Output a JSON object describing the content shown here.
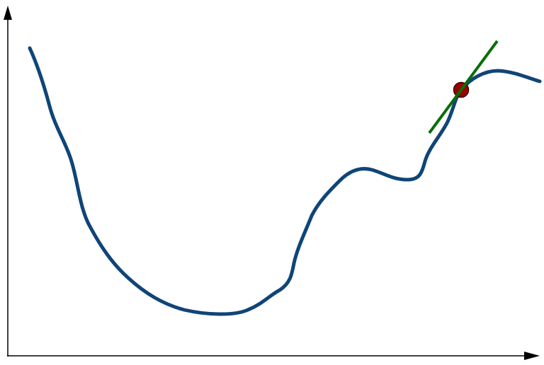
{
  "diagram": {
    "colors": {
      "axis": "#000000",
      "curve": "#0f4577",
      "tangent": "#0a6e0a",
      "point_fill": "#990000",
      "point_stroke": "#3a0000"
    },
    "elements": {
      "x_axis_arrow": "arrow-right-icon",
      "y_axis_arrow": "arrow-up-icon"
    }
  }
}
